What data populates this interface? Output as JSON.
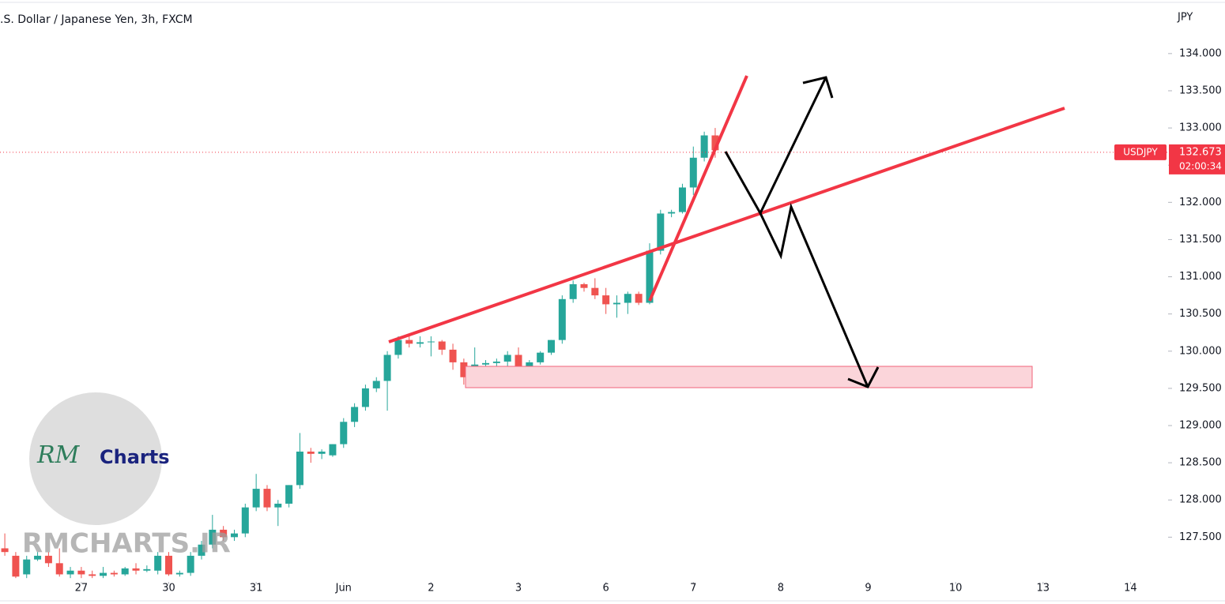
{
  "chart_data": {
    "type": "candlestick",
    "title": ".S. Dollar / Japanese Yen, 3h, FXCM",
    "y_axis_label": "JPY",
    "up_color": "#26a69a",
    "down_color": "#ef5350",
    "x": [
      -0.875,
      -0.75,
      -0.625,
      -0.5,
      -0.375,
      -0.25,
      -0.125,
      0,
      0.125,
      0.25,
      0.375,
      0.5,
      0.625,
      0.75,
      0.875,
      1,
      1.125,
      1.25,
      1.375,
      1.5,
      1.625,
      1.75,
      1.875,
      2,
      2.125,
      2.25,
      2.375,
      2.5,
      2.625,
      2.75,
      2.875,
      3,
      3.125,
      3.25,
      3.375,
      3.5,
      3.625,
      3.75,
      3.875,
      4,
      4.125,
      4.25,
      4.375,
      4.5,
      4.625,
      4.75,
      4.875,
      5,
      5.125,
      5.25,
      5.375,
      5.5,
      5.625,
      5.75,
      5.875,
      6,
      6.125,
      6.25,
      6.375,
      6.5,
      6.625,
      6.75,
      6.875,
      7,
      7.125,
      7.25
    ],
    "open": [
      127.35,
      127.25,
      127.0,
      127.2,
      127.25,
      127.15,
      127.0,
      127.05,
      127.0,
      126.98,
      127.02,
      127.0,
      127.08,
      127.05,
      127.05,
      127.25,
      127.0,
      127.02,
      127.25,
      127.4,
      127.6,
      127.5,
      127.55,
      127.9,
      128.15,
      127.9,
      127.95,
      128.2,
      128.65,
      128.62,
      128.6,
      128.75,
      129.05,
      129.25,
      129.5,
      129.6,
      129.95,
      130.15,
      130.1,
      130.12,
      130.13,
      130.02,
      129.85,
      129.65,
      129.82,
      129.84,
      129.86,
      129.95,
      129.8,
      129.85,
      129.98,
      130.15,
      130.7,
      130.9,
      130.85,
      130.75,
      130.63,
      130.65,
      130.77,
      130.65,
      131.35,
      131.85,
      131.87,
      132.2,
      132.6,
      132.9
    ],
    "high": [
      127.55,
      127.3,
      127.25,
      127.3,
      127.3,
      127.35,
      127.1,
      127.1,
      127.05,
      127.1,
      127.05,
      127.1,
      127.15,
      127.12,
      127.3,
      127.3,
      127.05,
      127.3,
      127.45,
      127.8,
      127.65,
      127.6,
      127.95,
      128.35,
      128.2,
      128.0,
      128.2,
      128.9,
      128.7,
      128.68,
      128.75,
      129.1,
      129.3,
      129.55,
      129.65,
      130.0,
      130.2,
      130.2,
      130.2,
      130.2,
      130.15,
      130.1,
      129.9,
      130.05,
      129.88,
      129.9,
      130.0,
      130.05,
      129.88,
      130.0,
      130.15,
      130.75,
      130.95,
      130.92,
      130.98,
      130.85,
      130.75,
      130.8,
      130.8,
      131.45,
      131.9,
      131.9,
      132.25,
      132.75,
      132.95,
      133.0
    ],
    "low": [
      127.25,
      126.95,
      126.95,
      127.18,
      127.1,
      126.97,
      126.95,
      126.95,
      126.95,
      126.95,
      126.97,
      126.98,
      127.0,
      127.03,
      127.0,
      126.98,
      126.97,
      126.98,
      127.2,
      127.35,
      127.45,
      127.45,
      127.5,
      127.85,
      127.85,
      127.65,
      127.9,
      128.15,
      128.5,
      128.55,
      128.58,
      128.7,
      128.98,
      129.2,
      129.45,
      129.2,
      129.9,
      130.05,
      130.05,
      129.93,
      129.95,
      129.75,
      129.55,
      129.6,
      129.75,
      129.8,
      129.8,
      129.7,
      129.7,
      129.82,
      129.95,
      130.1,
      130.65,
      130.8,
      130.7,
      130.5,
      130.45,
      130.5,
      130.62,
      130.63,
      131.3,
      131.8,
      131.85,
      132.1,
      132.55,
      132.6
    ],
    "close": [
      127.3,
      126.97,
      127.2,
      127.25,
      127.15,
      127.0,
      127.05,
      127.0,
      126.98,
      127.02,
      127.0,
      127.08,
      127.05,
      127.07,
      127.25,
      127.0,
      127.02,
      127.25,
      127.4,
      127.6,
      127.5,
      127.55,
      127.9,
      128.15,
      127.9,
      127.95,
      128.2,
      128.65,
      128.62,
      128.65,
      128.75,
      129.05,
      129.25,
      129.5,
      129.6,
      129.95,
      130.15,
      130.1,
      130.12,
      130.13,
      130.02,
      129.85,
      129.65,
      129.82,
      129.84,
      129.86,
      129.95,
      129.8,
      129.85,
      129.98,
      130.15,
      130.7,
      130.9,
      130.85,
      130.75,
      130.63,
      130.65,
      130.77,
      130.65,
      131.35,
      131.85,
      131.87,
      132.2,
      132.6,
      132.9,
      132.7
    ],
    "xlim": [
      -0.93,
      12.43
    ],
    "xticks": [
      {
        "value": 0,
        "label": "27"
      },
      {
        "value": 1,
        "label": "30"
      },
      {
        "value": 2,
        "label": "31"
      },
      {
        "value": 3,
        "label": "Jun"
      },
      {
        "value": 4,
        "label": "2"
      },
      {
        "value": 5,
        "label": "3"
      },
      {
        "value": 6,
        "label": "6"
      },
      {
        "value": 7,
        "label": "7"
      },
      {
        "value": 8,
        "label": "8"
      },
      {
        "value": 9,
        "label": "9"
      },
      {
        "value": 10,
        "label": "10"
      },
      {
        "value": 11,
        "label": "13"
      },
      {
        "value": 12,
        "label": "14"
      }
    ],
    "ylim": [
      126.92,
      134.72
    ],
    "yticks": [
      {
        "value": 127.5,
        "label": "127.500"
      },
      {
        "value": 128,
        "label": "128.000"
      },
      {
        "value": 128.5,
        "label": "128.500"
      },
      {
        "value": 129,
        "label": "129.000"
      },
      {
        "value": 129.5,
        "label": "129.500"
      },
      {
        "value": 130,
        "label": "130.000"
      },
      {
        "value": 130.5,
        "label": "130.500"
      },
      {
        "value": 131,
        "label": "131.000"
      },
      {
        "value": 131.5,
        "label": "131.500"
      },
      {
        "value": 132,
        "label": "132.000"
      },
      {
        "value": 132.5,
        "label": "132.500"
      },
      {
        "value": 133,
        "label": "133.000"
      },
      {
        "value": 133.5,
        "label": "133.500"
      },
      {
        "value": 134,
        "label": "134.000"
      }
    ],
    "last_price": {
      "symbol": "USDJPY",
      "value": 132.673,
      "countdown": "02:00:34",
      "color": "#f23645"
    },
    "logo": {
      "initials": "RM",
      "name": "Charts"
    },
    "watermark": "RMCHARTS.IR"
  }
}
